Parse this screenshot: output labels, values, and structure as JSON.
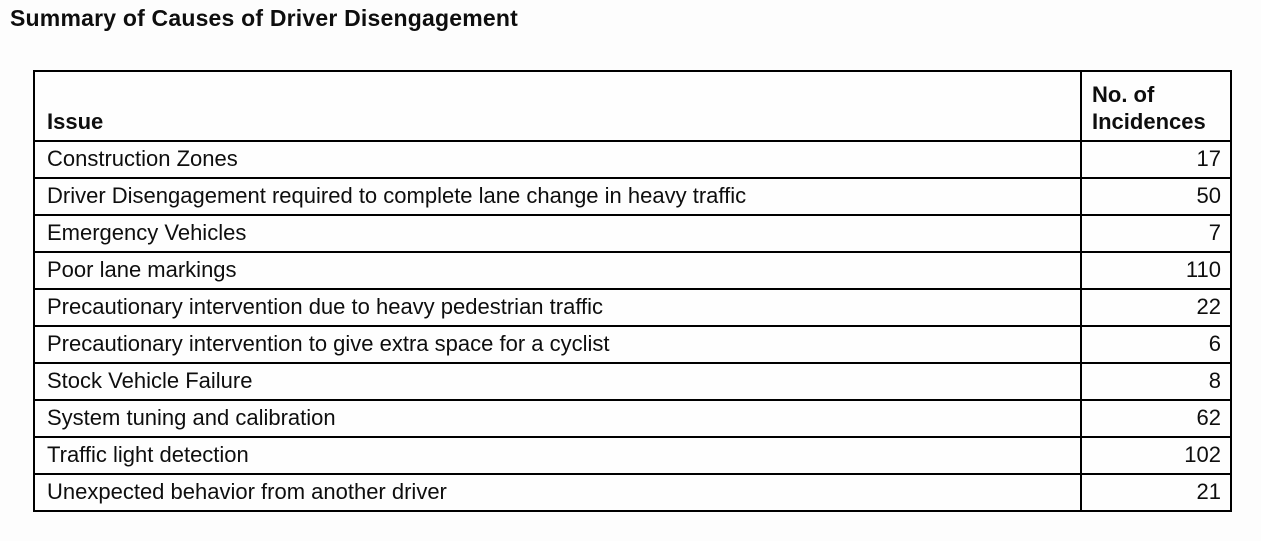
{
  "title": "Summary of Causes of Driver Disengagement",
  "table": {
    "header": {
      "issue_label": "Issue",
      "count_label_line1": "No. of",
      "count_label_line2": "Incidences"
    },
    "rows": [
      {
        "issue": "Construction Zones",
        "count": "17"
      },
      {
        "issue": "Driver Disengagement required to complete lane change in heavy traffic",
        "count": "50"
      },
      {
        "issue": "Emergency Vehicles",
        "count": "7"
      },
      {
        "issue": "Poor lane markings",
        "count": "110"
      },
      {
        "issue": "Precautionary intervention due to heavy pedestrian traffic",
        "count": "22"
      },
      {
        "issue": "Precautionary intervention to give extra space for a cyclist",
        "count": "6"
      },
      {
        "issue": "Stock Vehicle Failure",
        "count": "8"
      },
      {
        "issue": "System tuning and calibration",
        "count": "62"
      },
      {
        "issue": "Traffic light detection",
        "count": "102"
      },
      {
        "issue": "Unexpected behavior from another driver",
        "count": "21"
      }
    ]
  },
  "chart_data": {
    "type": "table",
    "title": "Summary of Causes of Driver Disengagement",
    "columns": [
      "Issue",
      "No. of Incidences"
    ],
    "categories": [
      "Construction Zones",
      "Driver Disengagement required to complete lane change in heavy traffic",
      "Emergency Vehicles",
      "Poor lane markings",
      "Precautionary intervention due to heavy pedestrian traffic",
      "Precautionary intervention to give extra space for a cyclist",
      "Stock Vehicle Failure",
      "System tuning and calibration",
      "Traffic light detection",
      "Unexpected behavior from another driver"
    ],
    "values": [
      17,
      50,
      7,
      110,
      22,
      6,
      8,
      62,
      102,
      21
    ]
  },
  "colors": {
    "text": "#0e0e0e",
    "border": "#000000",
    "background": "#fdfdfd"
  }
}
